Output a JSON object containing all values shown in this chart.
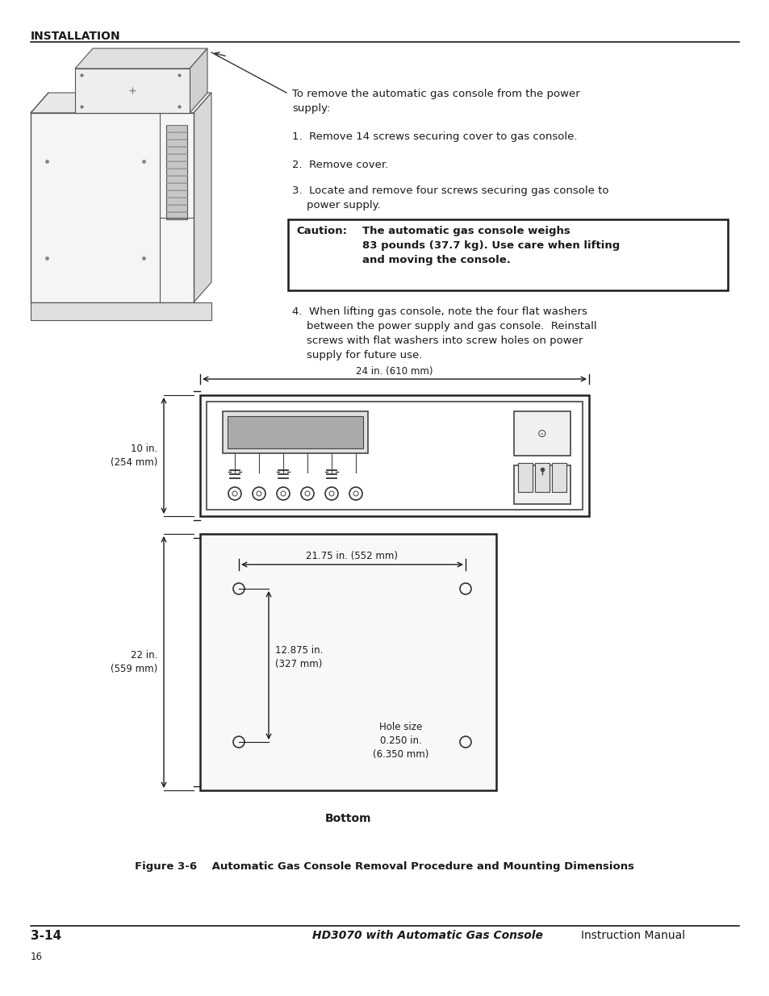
{
  "bg_color": "#ffffff",
  "header_text": "INSTALLATION",
  "intro_text": "To remove the automatic gas console from the power\nsupply:",
  "step1": "1.  Remove 14 screws securing cover to gas console.",
  "step2": "2.  Remove cover.",
  "step3": "3.  Locate and remove four screws securing gas console to\n    power supply.",
  "caution_label": "Caution:",
  "caution_text": "The automatic gas console weighs\n83 pounds (37.7 kg). Use care when lifting\nand moving the console.",
  "step4": "4.  When lifting gas console, note the four flat washers\n    between the power supply and gas console.  Reinstall\n    screws with flat washers into screw holes on power\n    supply for future use.",
  "dim_label_top": "24 in. (610 mm)",
  "dim_label_left": "10 in.\n(254 mm)",
  "dim_label_bottom_left": "22 in.\n(559 mm)",
  "dim_label_inner_width": "21.75 in. (552 mm)",
  "dim_label_inner_height": "12.875 in.\n(327 mm)",
  "dim_label_hole": "Hole size\n0.250 in.\n(6.350 mm)",
  "dim_label_bottom_text": "Bottom",
  "figure_caption": "Figure 3-6    Automatic Gas Console Removal Procedure and Mounting Dimensions",
  "footer_left": "3-14",
  "footer_center_bold": "HD3070 with Automatic Gas Console",
  "footer_center_regular": " Instruction Manual",
  "footer_page": "16"
}
